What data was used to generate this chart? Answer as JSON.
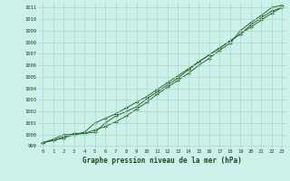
{
  "title": "Graphe pression niveau de la mer (hPa)",
  "xlabel_hours": [
    0,
    1,
    2,
    3,
    4,
    5,
    6,
    7,
    8,
    9,
    10,
    11,
    12,
    13,
    14,
    15,
    16,
    17,
    18,
    19,
    20,
    21,
    22,
    23
  ],
  "ylim": [
    998.8,
    1011.5
  ],
  "yticks": [
    999,
    1000,
    1001,
    1002,
    1003,
    1004,
    1005,
    1006,
    1007,
    1008,
    1009,
    1010,
    1011
  ],
  "line1": [
    999.3,
    999.5,
    999.7,
    1000.0,
    1000.1,
    1000.4,
    1000.7,
    1001.1,
    1001.6,
    1002.2,
    1002.8,
    1003.5,
    1004.1,
    1004.7,
    1005.3,
    1006.0,
    1006.6,
    1007.3,
    1007.9,
    1009.0,
    1009.7,
    1010.3,
    1011.0,
    1011.2
  ],
  "line2": [
    999.3,
    999.5,
    999.8,
    1000.1,
    1000.1,
    1000.2,
    1001.0,
    1001.6,
    1002.0,
    1002.4,
    1003.1,
    1003.7,
    1004.3,
    1004.9,
    1005.6,
    1006.3,
    1006.9,
    1007.5,
    1008.1,
    1008.7,
    1009.5,
    1010.1,
    1010.7,
    1011.0
  ],
  "line3": [
    999.3,
    999.6,
    1000.0,
    1000.0,
    1000.2,
    1001.0,
    1001.4,
    1001.8,
    1002.3,
    1002.8,
    1003.3,
    1003.9,
    1004.5,
    1005.1,
    1005.7,
    1006.3,
    1006.9,
    1007.5,
    1008.1,
    1008.7,
    1009.3,
    1009.9,
    1010.5,
    1011.0
  ],
  "line_color": "#2d6a2d",
  "bg_color": "#ccf0ea",
  "grid_color": "#a8d8d0",
  "title_color": "#1a4a1a",
  "tick_color": "#1a4a1a",
  "marker": "+"
}
